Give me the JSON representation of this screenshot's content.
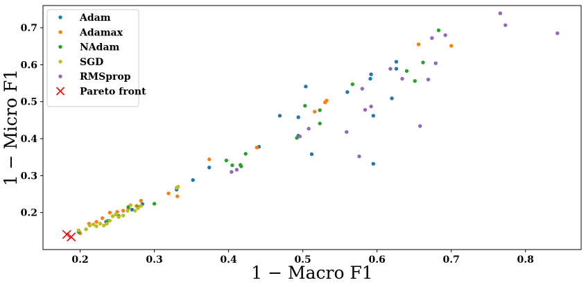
{
  "chart_data": {
    "type": "scatter",
    "xlabel": "1 − Macro F1",
    "ylabel": "1 − Micro F1",
    "xlim": [
      0.15,
      0.875
    ],
    "ylim": [
      0.1,
      0.76
    ],
    "xticks": [
      "0.2",
      "0.3",
      "0.4",
      "0.5",
      "0.6",
      "0.7",
      "0.8"
    ],
    "xtick_values": [
      0.2,
      0.3,
      0.4,
      0.5,
      0.6,
      0.7,
      0.8
    ],
    "yticks": [
      "0.2",
      "0.3",
      "0.4",
      "0.5",
      "0.6",
      "0.7"
    ],
    "ytick_values": [
      0.2,
      0.3,
      0.4,
      0.5,
      0.6,
      0.7
    ],
    "grid": false,
    "legend_position": "top-left",
    "series": [
      {
        "name": "Adam",
        "color": "#1f77b4",
        "marker": "dot",
        "points": [
          [
            0.199,
            0.146
          ],
          [
            0.235,
            0.175
          ],
          [
            0.27,
            0.208
          ],
          [
            0.284,
            0.223
          ],
          [
            0.33,
            0.262
          ],
          [
            0.352,
            0.288
          ],
          [
            0.374,
            0.322
          ],
          [
            0.441,
            0.378
          ],
          [
            0.469,
            0.462
          ],
          [
            0.494,
            0.408
          ],
          [
            0.494,
            0.458
          ],
          [
            0.504,
            0.541
          ],
          [
            0.512,
            0.358
          ],
          [
            0.56,
            0.526
          ],
          [
            0.591,
            0.562
          ],
          [
            0.592,
            0.574
          ],
          [
            0.595,
            0.462
          ],
          [
            0.595,
            0.332
          ],
          [
            0.62,
            0.509
          ],
          [
            0.626,
            0.608
          ],
          [
            0.626,
            0.589
          ]
        ]
      },
      {
        "name": "Adamax",
        "color": "#ff7f0e",
        "marker": "dot",
        "points": [
          [
            0.2,
            0.144
          ],
          [
            0.212,
            0.17
          ],
          [
            0.222,
            0.175
          ],
          [
            0.23,
            0.185
          ],
          [
            0.24,
            0.2
          ],
          [
            0.25,
            0.202
          ],
          [
            0.258,
            0.205
          ],
          [
            0.265,
            0.212
          ],
          [
            0.276,
            0.218
          ],
          [
            0.282,
            0.232
          ],
          [
            0.319,
            0.252
          ],
          [
            0.331,
            0.244
          ],
          [
            0.374,
            0.344
          ],
          [
            0.438,
            0.376
          ],
          [
            0.516,
            0.473
          ],
          [
            0.53,
            0.498
          ],
          [
            0.532,
            0.503
          ],
          [
            0.656,
            0.655
          ],
          [
            0.7,
            0.651
          ]
        ]
      },
      {
        "name": "NAdam",
        "color": "#2ca02c",
        "marker": "dot",
        "points": [
          [
            0.198,
            0.148
          ],
          [
            0.238,
            0.178
          ],
          [
            0.252,
            0.191
          ],
          [
            0.265,
            0.215
          ],
          [
            0.278,
            0.215
          ],
          [
            0.3,
            0.224
          ],
          [
            0.397,
            0.341
          ],
          [
            0.405,
            0.328
          ],
          [
            0.416,
            0.329
          ],
          [
            0.417,
            0.325
          ],
          [
            0.423,
            0.359
          ],
          [
            0.492,
            0.402
          ],
          [
            0.503,
            0.489
          ],
          [
            0.523,
            0.441
          ],
          [
            0.523,
            0.477
          ],
          [
            0.567,
            0.547
          ],
          [
            0.64,
            0.583
          ],
          [
            0.651,
            0.556
          ],
          [
            0.662,
            0.606
          ],
          [
            0.683,
            0.693
          ]
        ]
      },
      {
        "name": "SGD",
        "color": "#bcbd22",
        "marker": "dot",
        "points": [
          [
            0.198,
            0.152
          ],
          [
            0.208,
            0.155
          ],
          [
            0.213,
            0.165
          ],
          [
            0.218,
            0.168
          ],
          [
            0.222,
            0.163
          ],
          [
            0.227,
            0.17
          ],
          [
            0.232,
            0.165
          ],
          [
            0.236,
            0.17
          ],
          [
            0.24,
            0.178
          ],
          [
            0.244,
            0.19
          ],
          [
            0.248,
            0.195
          ],
          [
            0.252,
            0.188
          ],
          [
            0.258,
            0.192
          ],
          [
            0.264,
            0.205
          ],
          [
            0.268,
            0.22
          ],
          [
            0.274,
            0.205
          ],
          [
            0.278,
            0.212
          ],
          [
            0.282,
            0.218
          ],
          [
            0.33,
            0.267
          ],
          [
            0.332,
            0.27
          ]
        ]
      },
      {
        "name": "RMSprop",
        "color": "#9467bd",
        "marker": "dot",
        "points": [
          [
            0.404,
            0.31
          ],
          [
            0.411,
            0.316
          ],
          [
            0.496,
            0.406
          ],
          [
            0.508,
            0.427
          ],
          [
            0.559,
            0.418
          ],
          [
            0.576,
            0.352
          ],
          [
            0.58,
            0.535
          ],
          [
            0.584,
            0.478
          ],
          [
            0.592,
            0.487
          ],
          [
            0.618,
            0.589
          ],
          [
            0.634,
            0.562
          ],
          [
            0.658,
            0.434
          ],
          [
            0.669,
            0.56
          ],
          [
            0.674,
            0.672
          ],
          [
            0.679,
            0.604
          ],
          [
            0.692,
            0.68
          ],
          [
            0.766,
            0.739
          ],
          [
            0.773,
            0.707
          ],
          [
            0.843,
            0.685
          ]
        ]
      },
      {
        "name": "Pareto front",
        "color": "#ff0000",
        "marker": "x",
        "points": [
          [
            0.182,
            0.141
          ],
          [
            0.188,
            0.134
          ]
        ]
      }
    ]
  }
}
